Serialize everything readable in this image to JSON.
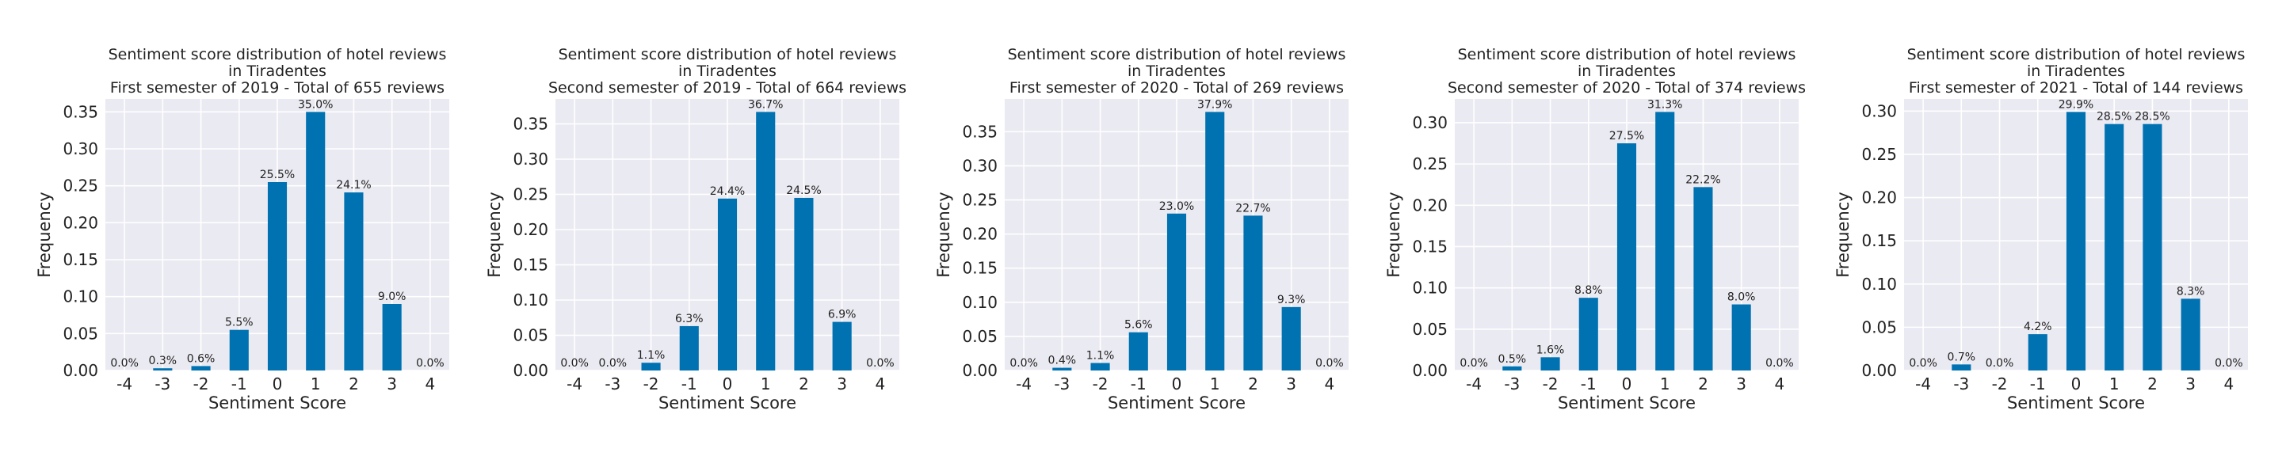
{
  "style": {
    "plot_bg": "#eaeaf2",
    "grid": "#ffffff",
    "bar": "#0072b2",
    "text": "#222222"
  },
  "chart_data": [
    {
      "type": "bar",
      "title": [
        "Sentiment score distribution of hotel reviews",
        "in Tiradentes",
        "First semester of 2019 - Total of 655 reviews"
      ],
      "xlabel": "Sentiment Score",
      "ylabel": "Frequency",
      "categories": [
        "-4",
        "-3",
        "-2",
        "-1",
        "0",
        "1",
        "2",
        "3",
        "4"
      ],
      "values": [
        0.0,
        0.003,
        0.006,
        0.055,
        0.255,
        0.35,
        0.241,
        0.09,
        0.0
      ],
      "data_labels": [
        "0.0%",
        "0.3%",
        "0.6%",
        "5.5%",
        "25.5%",
        "35.0%",
        "24.1%",
        "9.0%",
        "0.0%"
      ],
      "yticks": [
        0.0,
        0.05,
        0.1,
        0.15,
        0.2,
        0.25,
        0.3,
        0.35
      ],
      "ytick_labels": [
        "0.00",
        "0.05",
        "0.10",
        "0.15",
        "0.20",
        "0.25",
        "0.30",
        "0.35"
      ],
      "ylim": [
        0,
        0.3675
      ],
      "grid": true
    },
    {
      "type": "bar",
      "title": [
        "Sentiment score distribution of hotel reviews",
        "in Tiradentes",
        "Second semester of 2019 - Total of 664 reviews"
      ],
      "xlabel": "Sentiment Score",
      "ylabel": "Frequency",
      "categories": [
        "-4",
        "-3",
        "-2",
        "-1",
        "0",
        "1",
        "2",
        "3",
        "4"
      ],
      "values": [
        0.0,
        0.0,
        0.011,
        0.063,
        0.244,
        0.367,
        0.245,
        0.069,
        0.0
      ],
      "data_labels": [
        "0.0%",
        "0.0%",
        "1.1%",
        "6.3%",
        "24.4%",
        "36.7%",
        "24.5%",
        "6.9%",
        "0.0%"
      ],
      "yticks": [
        0.0,
        0.05,
        0.1,
        0.15,
        0.2,
        0.25,
        0.3,
        0.35
      ],
      "ytick_labels": [
        "0.00",
        "0.05",
        "0.10",
        "0.15",
        "0.20",
        "0.25",
        "0.30",
        "0.35"
      ],
      "ylim": [
        0,
        0.3854
      ],
      "grid": true
    },
    {
      "type": "bar",
      "title": [
        "Sentiment score distribution of hotel reviews",
        "in Tiradentes",
        "First semester of 2020 - Total of 269 reviews"
      ],
      "xlabel": "Sentiment Score",
      "ylabel": "Frequency",
      "categories": [
        "-4",
        "-3",
        "-2",
        "-1",
        "0",
        "1",
        "2",
        "3",
        "4"
      ],
      "values": [
        0.0,
        0.004,
        0.011,
        0.056,
        0.23,
        0.379,
        0.227,
        0.093,
        0.0
      ],
      "data_labels": [
        "0.0%",
        "0.4%",
        "1.1%",
        "5.6%",
        "23.0%",
        "37.9%",
        "22.7%",
        "9.3%",
        "0.0%"
      ],
      "yticks": [
        0.0,
        0.05,
        0.1,
        0.15,
        0.2,
        0.25,
        0.3,
        0.35
      ],
      "ytick_labels": [
        "0.00",
        "0.05",
        "0.10",
        "0.15",
        "0.20",
        "0.25",
        "0.30",
        "0.35"
      ],
      "ylim": [
        0,
        0.398
      ],
      "grid": true
    },
    {
      "type": "bar",
      "title": [
        "Sentiment score distribution of hotel reviews",
        "in Tiradentes",
        "Second semester of 2020 - Total of 374 reviews"
      ],
      "xlabel": "Sentiment Score",
      "ylabel": "Frequency",
      "categories": [
        "-4",
        "-3",
        "-2",
        "-1",
        "0",
        "1",
        "2",
        "3",
        "4"
      ],
      "values": [
        0.0,
        0.005,
        0.016,
        0.088,
        0.275,
        0.313,
        0.222,
        0.08,
        0.0
      ],
      "data_labels": [
        "0.0%",
        "0.5%",
        "1.6%",
        "8.8%",
        "27.5%",
        "31.3%",
        "22.2%",
        "8.0%",
        "0.0%"
      ],
      "yticks": [
        0.0,
        0.05,
        0.1,
        0.15,
        0.2,
        0.25,
        0.3
      ],
      "ytick_labels": [
        "0.00",
        "0.05",
        "0.10",
        "0.15",
        "0.20",
        "0.25",
        "0.30"
      ],
      "ylim": [
        0,
        0.3287
      ],
      "grid": true
    },
    {
      "type": "bar",
      "title": [
        "Sentiment score distribution of hotel reviews",
        "in Tiradentes",
        "First semester of 2021 - Total of 144 reviews"
      ],
      "xlabel": "Sentiment Score",
      "ylabel": "Frequency",
      "categories": [
        "-4",
        "-3",
        "-2",
        "-1",
        "0",
        "1",
        "2",
        "3",
        "4"
      ],
      "values": [
        0.0,
        0.007,
        0.0,
        0.042,
        0.299,
        0.285,
        0.285,
        0.083,
        0.0
      ],
      "data_labels": [
        "0.0%",
        "0.7%",
        "0.0%",
        "4.2%",
        "29.9%",
        "28.5%",
        "28.5%",
        "8.3%",
        "0.0%"
      ],
      "yticks": [
        0.0,
        0.05,
        0.1,
        0.15,
        0.2,
        0.25,
        0.3
      ],
      "ytick_labels": [
        "0.00",
        "0.05",
        "0.10",
        "0.15",
        "0.20",
        "0.25",
        "0.30"
      ],
      "ylim": [
        0,
        0.314
      ],
      "grid": true
    }
  ]
}
